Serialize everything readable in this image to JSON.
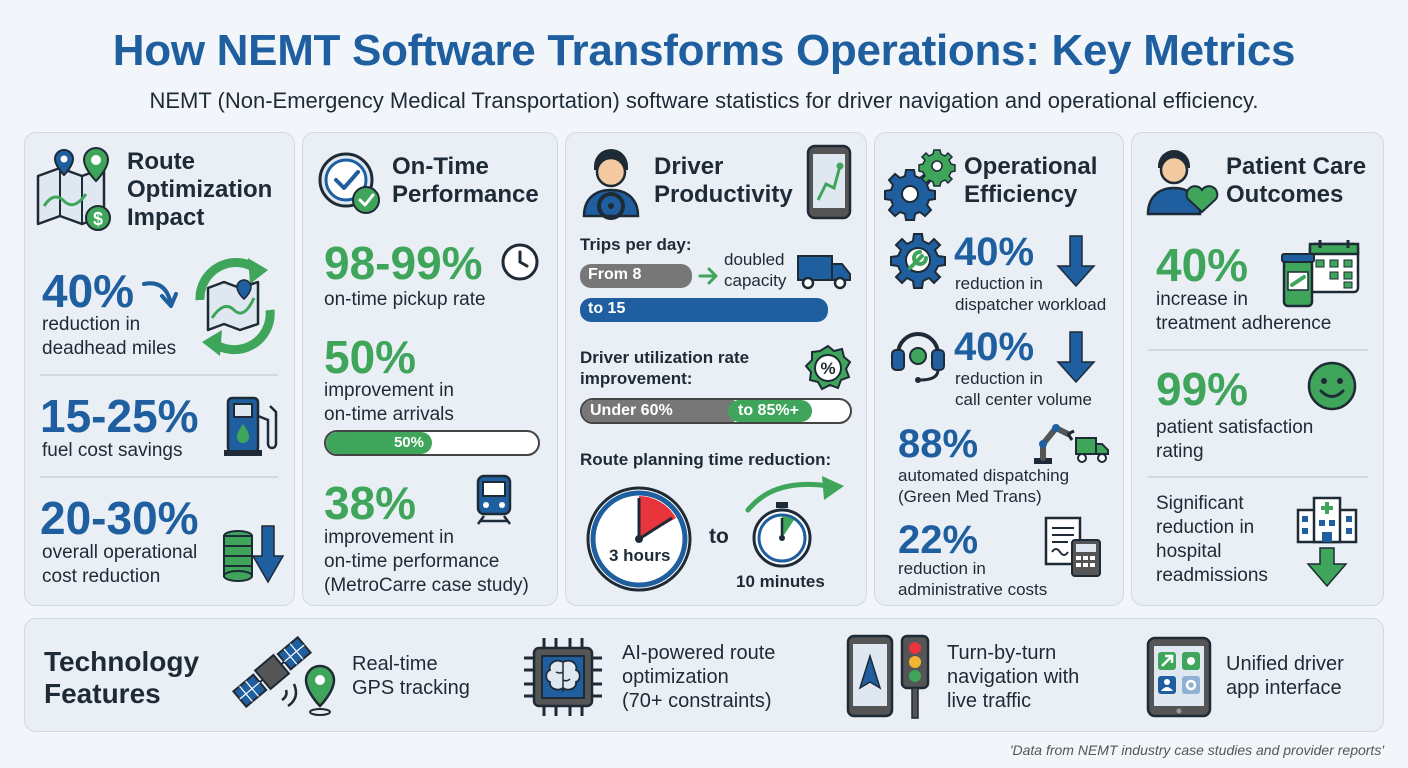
{
  "title": "How NEMT Software Transforms Operations: Key Metrics",
  "subtitle": "NEMT (Non-Emergency Medical Transportation) software statistics for driver navigation and operational efficiency.",
  "colors": {
    "blue": "#1f5fa0",
    "green": "#3fa55b",
    "grey": "#777777",
    "card": "#e9eff5"
  },
  "route": {
    "heading": [
      "Route",
      "Optimization",
      "Impact"
    ],
    "m1_value": "40%",
    "m1_label": [
      "reduction in",
      "deadhead miles"
    ],
    "m2_value": "15-25%",
    "m2_label": "fuel cost savings",
    "m3_value": "20-30%",
    "m3_label": [
      "overall operational",
      "cost reduction"
    ]
  },
  "ontime": {
    "heading": [
      "On-Time",
      "Performance"
    ],
    "m1_value": "98-99%",
    "m1_label": "on-time pickup rate",
    "m2_value": "50%",
    "m2_label": [
      "improvement in",
      "on-time arrivals"
    ],
    "bar_label": "50%",
    "bar_fraction": 0.5,
    "m3_value": "38%",
    "m3_label": [
      "improvement in",
      "on-time performance",
      "(MetroCarre case study)"
    ]
  },
  "driver": {
    "heading": [
      "Driver",
      "Productivity"
    ],
    "trips_title": "Trips per day:",
    "trips_from": "From 8",
    "trips_to": "to 15",
    "trips_note": [
      "doubled",
      "capacity"
    ],
    "util_title": [
      "Driver utilization rate",
      "improvement:"
    ],
    "util_from": "Under 60%",
    "util_to": "to 85%+",
    "util_icon": "%",
    "plan_title": "Route planning time reduction:",
    "plan_from": "3 hours",
    "plan_to": "10 minutes",
    "plan_join": "to"
  },
  "ops": {
    "heading": [
      "Operational",
      "Efficiency"
    ],
    "m1_value": "40%",
    "m1_label": [
      "reduction in",
      "dispatcher workload"
    ],
    "m2_value": "40%",
    "m2_label": [
      "reduction in",
      "call center volume"
    ],
    "m3_value": "88%",
    "m3_label": [
      "automated dispatching",
      "(Green Med Trans)"
    ],
    "m4_value": "22%",
    "m4_label": [
      "reduction in",
      "administrative costs"
    ]
  },
  "patient": {
    "heading": [
      "Patient Care",
      "Outcomes"
    ],
    "m1_value": "40%",
    "m1_label": [
      "increase in",
      "treatment adherence"
    ],
    "m2_value": "99%",
    "m2_label": [
      "patient satisfaction",
      "rating"
    ],
    "m3_label": [
      "Significant",
      "reduction in",
      "hospital",
      "readmissions"
    ]
  },
  "tech": {
    "heading": [
      "Technology",
      "Features"
    ],
    "f1": [
      "Real-time",
      "GPS tracking"
    ],
    "f2": [
      "AI-powered route",
      "optimization",
      "(70+ constraints)"
    ],
    "f3": [
      "Turn-by-turn",
      "navigation with",
      "live traffic"
    ],
    "f4": [
      "Unified driver",
      "app interface"
    ]
  },
  "footer": "'Data from NEMT industry case studies and provider reports'"
}
